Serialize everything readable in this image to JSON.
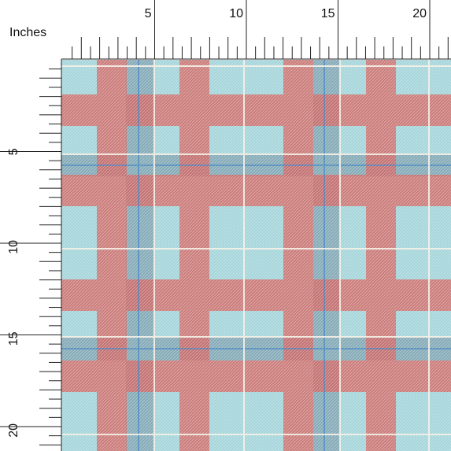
{
  "ruler": {
    "label": "Inches",
    "top_labels": [
      5,
      10,
      15,
      20
    ],
    "left_labels": [
      5,
      10,
      15,
      20
    ]
  }
}
